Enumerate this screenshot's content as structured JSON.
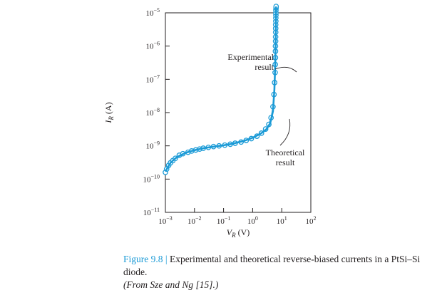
{
  "chart_data": {
    "type": "line",
    "xlabel_main": "V",
    "xlabel_sub": "R",
    "xlabel_unit": "(V)",
    "ylabel_main": "I",
    "ylabel_sub": "R",
    "ylabel_unit": "(A)",
    "x_scale": "log",
    "y_scale": "log",
    "xlim": [
      0.001,
      100
    ],
    "ylim": [
      1e-11,
      1e-05
    ],
    "x_ticks": [
      {
        "value": 0.001,
        "base": "10",
        "exp": "−3"
      },
      {
        "value": 0.01,
        "base": "10",
        "exp": "−2"
      },
      {
        "value": 0.1,
        "base": "10",
        "exp": "−1"
      },
      {
        "value": 1,
        "base": "10",
        "exp": "0"
      },
      {
        "value": 10,
        "base": "10",
        "exp": "1"
      },
      {
        "value": 100,
        "base": "10",
        "exp": "2"
      }
    ],
    "y_ticks": [
      {
        "value": 1e-05,
        "base": "10",
        "exp": "−5"
      },
      {
        "value": 1e-06,
        "base": "10",
        "exp": "−6"
      },
      {
        "value": 1e-07,
        "base": "10",
        "exp": "−7"
      },
      {
        "value": 1e-08,
        "base": "10",
        "exp": "−8"
      },
      {
        "value": 1e-09,
        "base": "10",
        "exp": "−9"
      },
      {
        "value": 1e-10,
        "base": "10",
        "exp": "−10"
      },
      {
        "value": 1e-11,
        "base": "10",
        "exp": "−11"
      }
    ],
    "grid": false,
    "series": [
      {
        "name": "Experimental result",
        "marker": "open-circle",
        "color": "#1a9ad6",
        "x": [
          0.001,
          0.0011,
          0.0013,
          0.0015,
          0.0018,
          0.0022,
          0.003,
          0.004,
          0.006,
          0.008,
          0.011,
          0.015,
          0.02,
          0.03,
          0.045,
          0.07,
          0.11,
          0.17,
          0.25,
          0.4,
          0.6,
          0.9,
          1.4,
          2.0,
          2.8,
          3.6,
          4.3,
          5.0,
          5.4,
          5.7,
          5.9,
          6.0,
          6.05,
          6.1,
          6.1,
          6.15,
          6.15,
          6.2,
          6.2,
          6.2,
          6.25,
          6.25,
          6.3,
          6.3,
          6.3,
          6.35,
          6.4
        ],
        "y": [
          1.6e-10,
          2e-10,
          2.6e-10,
          3.1e-10,
          3.6e-10,
          4.2e-10,
          5.2e-10,
          5.8e-10,
          6.4e-10,
          7e-10,
          7.5e-10,
          8e-10,
          8.5e-10,
          9e-10,
          9.5e-10,
          1e-09,
          1.05e-09,
          1.12e-09,
          1.2e-09,
          1.3e-09,
          1.45e-09,
          1.65e-09,
          1.95e-09,
          2.4e-09,
          3.2e-09,
          4.4e-09,
          7e-09,
          1.5e-08,
          3.5e-08,
          8e-08,
          1.6e-07,
          2.8e-07,
          4.5e-07,
          7e-07,
          1e-06,
          1.4e-06,
          1.9e-06,
          2.6e-06,
          3.4e-06,
          4.4e-06,
          5.6e-06,
          7e-06,
          8.5e-06,
          1e-05,
          1.2e-05,
          1.4e-05,
          1.55e-05
        ]
      },
      {
        "name": "Theoretical result",
        "marker": "none",
        "color": "#1a9ad6",
        "x": [
          0.001,
          0.0015,
          0.0022,
          0.003,
          0.005,
          0.01,
          0.02,
          0.05,
          0.1,
          0.2,
          0.5,
          1.0,
          2.0,
          3.0,
          4.0,
          5.0,
          5.6,
          6.0,
          6.3,
          6.4
        ],
        "y": [
          1.7e-10,
          3.1e-10,
          4.2e-10,
          5e-10,
          6.2e-10,
          7.4e-10,
          8.5e-10,
          9.6e-10,
          1.04e-09,
          1.15e-09,
          1.4e-09,
          1.75e-09,
          2.4e-09,
          3.2e-09,
          4.8e-09,
          1.1e-08,
          5e-08,
          3e-07,
          3e-06,
          1.55e-05
        ]
      }
    ],
    "annotations": [
      {
        "lines": [
          "Experimental",
          "result"
        ],
        "points_to": "Experimental result"
      },
      {
        "lines": [
          "Theoretical",
          "result"
        ],
        "points_to": "Theoretical result"
      }
    ]
  },
  "caption": {
    "figure_number": "Figure 9.8",
    "separator": "|",
    "text": " Experimental and theoretical reverse-biased currents in a PtSi–Si diode.",
    "source": "(From Sze and Ng [15].)"
  }
}
